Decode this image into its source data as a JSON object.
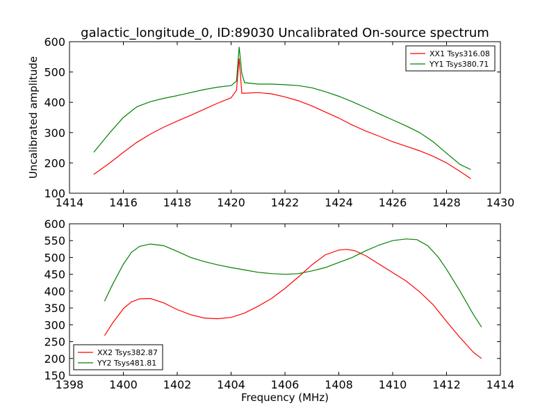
{
  "figure": {
    "title": "galactic_longitude_0, ID:89030 Uncalibrated On-source spectrum"
  },
  "chart_data": [
    {
      "type": "line",
      "ylabel": "Uncalibrated amplitude",
      "xlabel": "",
      "xlim": [
        1414,
        1430
      ],
      "ylim": [
        100,
        600
      ],
      "xticks": [
        1414,
        1416,
        1418,
        1420,
        1422,
        1424,
        1426,
        1428,
        1430
      ],
      "yticks": [
        100,
        200,
        300,
        400,
        500,
        600
      ],
      "legend_position": "top-right",
      "series": [
        {
          "name": "XX1 Tsys316.08",
          "color": "#ff0000",
          "x": [
            1414.9,
            1415.5,
            1416.0,
            1416.5,
            1417.0,
            1417.5,
            1418.0,
            1418.5,
            1419.0,
            1419.5,
            1420.0,
            1420.2,
            1420.3,
            1420.4,
            1420.5,
            1421.0,
            1421.5,
            1422.0,
            1422.5,
            1423.0,
            1423.5,
            1424.0,
            1424.5,
            1425.0,
            1425.5,
            1426.0,
            1426.5,
            1427.0,
            1427.5,
            1428.0,
            1428.5,
            1428.9
          ],
          "values": [
            162,
            200,
            235,
            268,
            295,
            318,
            338,
            357,
            377,
            397,
            415,
            440,
            545,
            430,
            430,
            432,
            428,
            418,
            405,
            388,
            368,
            348,
            325,
            305,
            288,
            270,
            255,
            240,
            222,
            200,
            172,
            148
          ]
        },
        {
          "name": "YY1 Tsys380.71",
          "color": "#008000",
          "x": [
            1414.9,
            1415.5,
            1416.0,
            1416.5,
            1417.0,
            1417.5,
            1418.0,
            1418.5,
            1419.0,
            1419.5,
            1420.0,
            1420.2,
            1420.3,
            1420.4,
            1420.5,
            1421.0,
            1421.5,
            1422.0,
            1422.5,
            1423.0,
            1423.5,
            1424.0,
            1424.5,
            1425.0,
            1425.5,
            1426.0,
            1426.5,
            1427.0,
            1427.5,
            1428.0,
            1428.5,
            1428.9
          ],
          "values": [
            235,
            300,
            350,
            385,
            402,
            413,
            422,
            432,
            442,
            450,
            455,
            470,
            583,
            495,
            465,
            460,
            460,
            458,
            455,
            448,
            435,
            420,
            402,
            382,
            362,
            342,
            322,
            300,
            270,
            232,
            195,
            178
          ]
        }
      ]
    },
    {
      "type": "line",
      "xlabel": "Frequency (MHz)",
      "ylabel": "",
      "xlim": [
        1398,
        1414
      ],
      "ylim": [
        150,
        600
      ],
      "xticks": [
        1398,
        1400,
        1402,
        1404,
        1406,
        1408,
        1410,
        1412,
        1414
      ],
      "yticks": [
        150,
        200,
        250,
        300,
        350,
        400,
        450,
        500,
        550,
        600
      ],
      "legend_position": "bottom-left",
      "series": [
        {
          "name": "XX2 Tsys382.87",
          "color": "#ff0000",
          "x": [
            1399.3,
            1399.6,
            1400.0,
            1400.3,
            1400.6,
            1401.0,
            1401.5,
            1402.0,
            1402.5,
            1403.0,
            1403.5,
            1404.0,
            1404.5,
            1405.0,
            1405.5,
            1406.0,
            1406.5,
            1407.0,
            1407.5,
            1408.0,
            1408.3,
            1408.6,
            1409.0,
            1409.5,
            1410.0,
            1410.5,
            1411.0,
            1411.5,
            1412.0,
            1412.5,
            1413.0,
            1413.3
          ],
          "values": [
            268,
            305,
            348,
            368,
            377,
            378,
            365,
            345,
            330,
            320,
            318,
            322,
            335,
            355,
            378,
            408,
            442,
            478,
            508,
            522,
            524,
            520,
            505,
            480,
            455,
            430,
            398,
            360,
            310,
            262,
            218,
            200
          ]
        },
        {
          "name": "YY2 Tsys481.81",
          "color": "#008000",
          "x": [
            1399.3,
            1399.6,
            1400.0,
            1400.3,
            1400.6,
            1401.0,
            1401.5,
            1402.0,
            1402.5,
            1403.0,
            1403.5,
            1404.0,
            1404.5,
            1405.0,
            1405.5,
            1406.0,
            1406.5,
            1407.0,
            1407.5,
            1408.0,
            1408.5,
            1409.0,
            1409.5,
            1410.0,
            1410.5,
            1410.9,
            1411.3,
            1411.7,
            1412.0,
            1412.5,
            1413.0,
            1413.3
          ],
          "values": [
            370,
            420,
            480,
            515,
            533,
            540,
            535,
            518,
            500,
            488,
            478,
            470,
            463,
            456,
            452,
            450,
            452,
            460,
            470,
            485,
            500,
            520,
            537,
            550,
            555,
            553,
            535,
            500,
            465,
            400,
            330,
            293
          ]
        }
      ]
    }
  ]
}
